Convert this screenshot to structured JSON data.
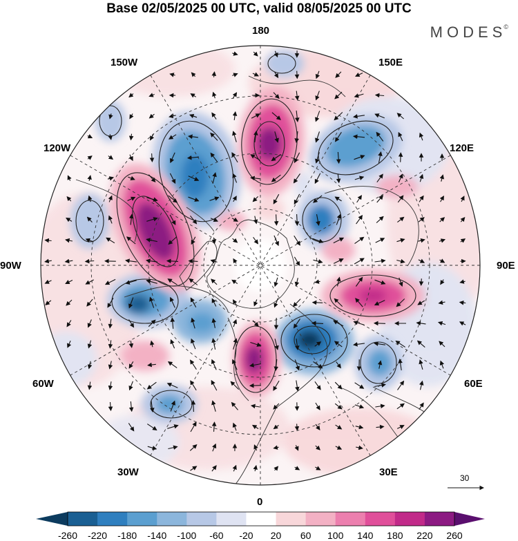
{
  "title": "Base 02/05/2025 00 UTC, valid 08/05/2025 00 UTC",
  "brand": "MODES",
  "brand_mark": "©",
  "longitude_labels": {
    "lon_180": "180",
    "lon_150W": "150W",
    "lon_150E": "150E",
    "lon_120W": "120W",
    "lon_120E": "120E",
    "lon_90W": "90W",
    "lon_90E": "90E",
    "lon_60W": "60W",
    "lon_60E": "60E",
    "lon_30W": "30W",
    "lon_30E": "30E",
    "lon_0": "0"
  },
  "reference_vector": {
    "label": "30"
  },
  "colorbar": {
    "tick_labels": [
      "-260",
      "-220",
      "-180",
      "-140",
      "-100",
      "-60",
      "-20",
      "20",
      "60",
      "100",
      "140",
      "180",
      "220",
      "260"
    ],
    "colors": [
      "#0c3b5e",
      "#1a5f93",
      "#2f7fbf",
      "#5b9fd0",
      "#8cb6dc",
      "#b7c8e6",
      "#dfe3f2",
      "#ffffff",
      "#f8d7da",
      "#f3b1c4",
      "#ec7fae",
      "#e04f9a",
      "#c12a89",
      "#8c1a82",
      "#5a0f6e"
    ]
  },
  "colors": {
    "land_outline": "#333333",
    "grid": "#333333",
    "arrow": "#111111"
  }
}
